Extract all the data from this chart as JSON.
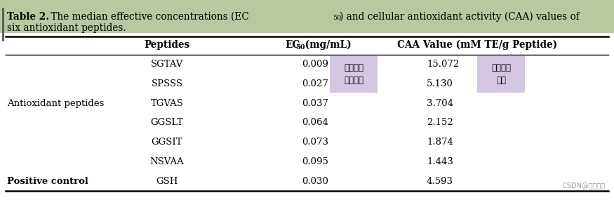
{
  "title_bold": "Table 2.",
  "title_normal": " The median effective concentrations (EC",
  "title_subscript": "50",
  "title_end": ") and cellular antioxidant activity (CAA) values of",
  "title_line2": "six antioxidant peptides.",
  "col_headers": [
    "Peptides",
    "EC",
    "50",
    " (mg/mL)",
    "CAA Value (mM TE/g Peptide)"
  ],
  "rows": [
    [
      "",
      "SGTAV",
      "0.009",
      "15.072",
      true,
      true
    ],
    [
      "",
      "SPSSS",
      "0.027",
      "5.130",
      true,
      true
    ],
    [
      "Antioxidant peptides",
      "TGVAS",
      "0.037",
      "3.704",
      false,
      false
    ],
    [
      "",
      "GGSLT",
      "0.064",
      "2.152",
      false,
      false
    ],
    [
      "",
      "GGSIT",
      "0.073",
      "1.874",
      false,
      false
    ],
    [
      "",
      "NSVAA",
      "0.095",
      "1.443",
      false,
      false
    ],
    [
      "Positive control",
      "GSH",
      "0.030",
      "4.593",
      false,
      false
    ]
  ],
  "annotation1_text": "多肽的半\n数有效率",
  "annotation2_text": "抗氧化活\n性値",
  "annotation_color": "#c8b4d8",
  "annotation_alpha": 0.75,
  "watermark": "CSDN@黄思博计",
  "top_bg_color": "#c8d8b8",
  "white_bg": "#ffffff",
  "line_color": "#000000",
  "text_color": "#000000",
  "watermark_color": "#999999"
}
